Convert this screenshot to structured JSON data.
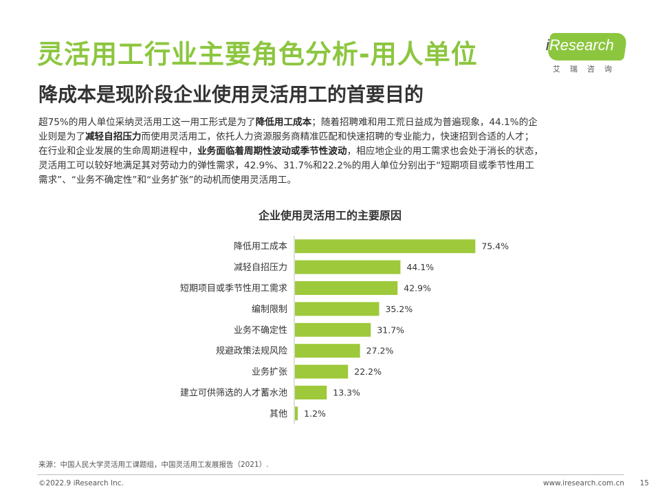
{
  "header": {
    "title": "灵活用工行业主要角色分析-用人单位",
    "subtitle": "降成本是现阶段企业使用灵活用工的首要目的",
    "logo_text": "Research",
    "logo_i": "i",
    "logo_cn": "艾瑞咨询"
  },
  "body": {
    "lines": [
      [
        "超75%的用人单位采纳灵活用工这一用工形式是为了",
        "降低用工成本",
        "；随着招聘难和用工荒日益成为普遍现象，44.1%的企"
      ],
      [
        "业则是为了",
        "减轻自招压力",
        "而使用灵活用工，依托人力资源服务商精准匹配和快速招聘的专业能力，快速招到合适的人才；"
      ],
      [
        "在行业和企业发展的生命周期进程中，",
        "业务面临着周期性波动或季节性波动",
        "，相应地企业的用工需求也会处于消长的状态，"
      ],
      [
        "灵活用工可以较好地满足其对劳动力的弹性需求，42.9%、31.7%和22.2%的用人单位分别出于“短期项目或季节性用工",
        "",
        ""
      ],
      [
        "需求”、“业务不确定性”和“业务扩张”的动机而使用灵活用工。",
        "",
        ""
      ]
    ]
  },
  "chart_data": {
    "type": "bar",
    "orientation": "horizontal",
    "title": "企业使用灵活用工的主要原因",
    "categories": [
      "降低用工成本",
      "减轻自招压力",
      "短期项目或季节性用工需求",
      "编制限制",
      "业务不确定性",
      "规避政策法规风险",
      "业务扩张",
      "建立可供筛选的人才蓄水池",
      "其他"
    ],
    "values": [
      75.4,
      44.1,
      42.9,
      35.2,
      31.7,
      27.2,
      22.2,
      13.3,
      1.2
    ],
    "value_labels": [
      "75.4%",
      "44.1%",
      "42.9%",
      "35.2%",
      "31.7%",
      "27.2%",
      "22.2%",
      "13.3%",
      "1.2%"
    ],
    "unit": "%",
    "bar_color": "#9ec93a",
    "xlim": [
      0,
      100
    ],
    "grid": false,
    "legend": "none"
  },
  "footer": {
    "source": "来源：中国人民大学灵活用工课题组，中国灵活用工发展报告（2021）.",
    "copyright": "©2022.9 iResearch Inc.",
    "website": "www.iresearch.com.cn",
    "page_number": "15"
  }
}
